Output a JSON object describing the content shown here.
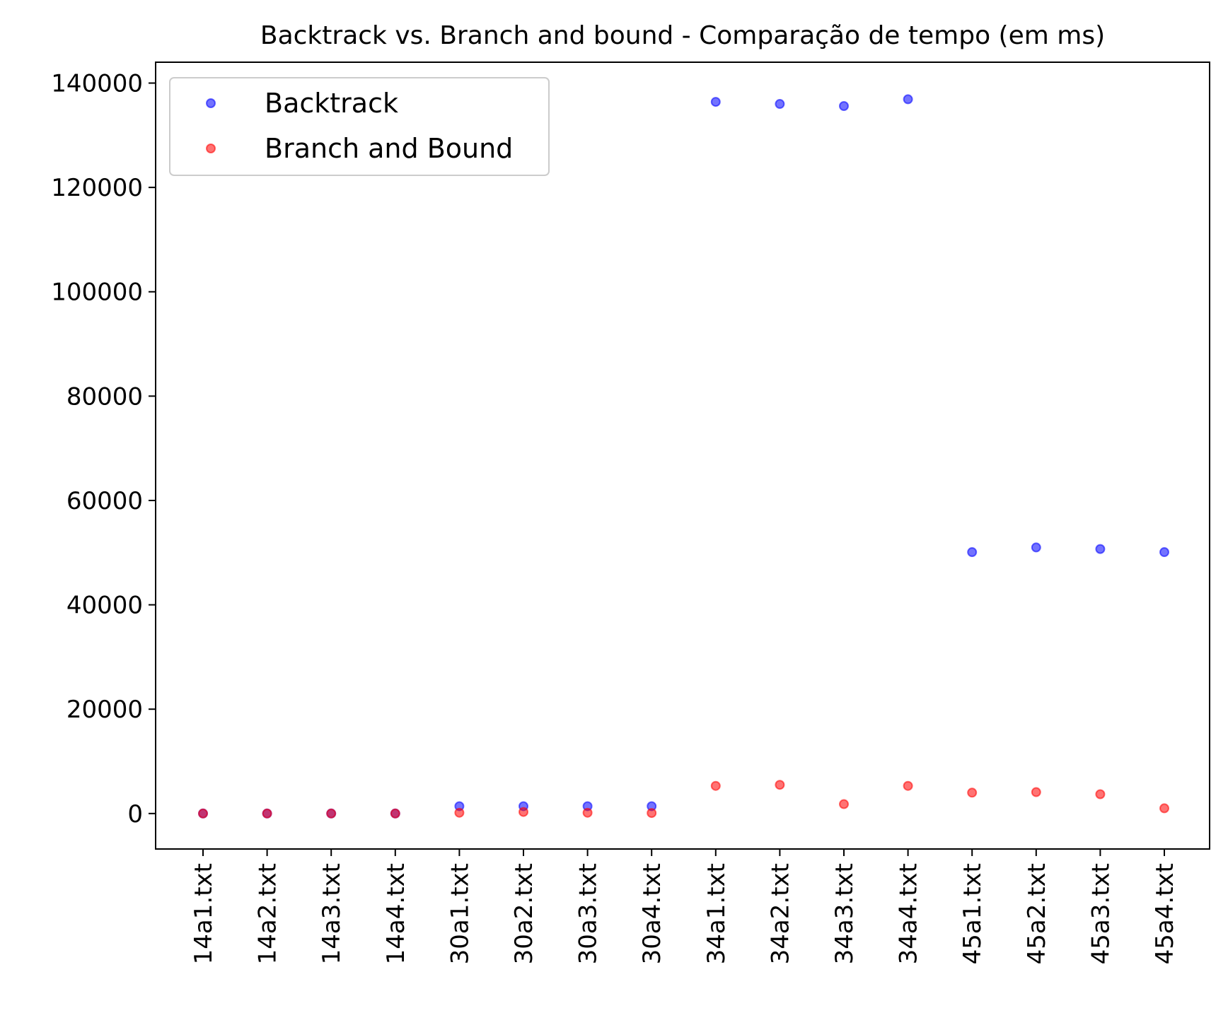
{
  "chart_data": {
    "type": "scatter",
    "title": "Backtrack vs. Branch and bound - Comparação de tempo (em ms)",
    "xlabel": "",
    "ylabel": "",
    "categories": [
      "14a1.txt",
      "14a2.txt",
      "14a3.txt",
      "14a4.txt",
      "30a1.txt",
      "30a2.txt",
      "30a3.txt",
      "30a4.txt",
      "34a1.txt",
      "34a2.txt",
      "34a3.txt",
      "34a4.txt",
      "45a1.txt",
      "45a2.txt",
      "45a3.txt",
      "45a4.txt"
    ],
    "series": [
      {
        "name": "Backtrack",
        "color": "#0000ff",
        "values": [
          5,
          5,
          5,
          5,
          1400,
          1400,
          1400,
          1400,
          136400,
          136000,
          135600,
          136900,
          50100,
          51000,
          50700,
          50100
        ]
      },
      {
        "name": "Branch and Bound",
        "color": "#ff0000",
        "values": [
          5,
          5,
          5,
          5,
          150,
          300,
          150,
          100,
          5300,
          5500,
          1800,
          5300,
          4000,
          4100,
          3700,
          1000
        ]
      }
    ],
    "ylim": [
      -6800,
      144000
    ],
    "yticks": [
      0,
      20000,
      40000,
      60000,
      80000,
      100000,
      120000,
      140000
    ],
    "ytick_labels": [
      "0",
      "20000",
      "40000",
      "60000",
      "80000",
      "100000",
      "120000",
      "140000"
    ],
    "grid": false,
    "legend_position": "top-left"
  }
}
